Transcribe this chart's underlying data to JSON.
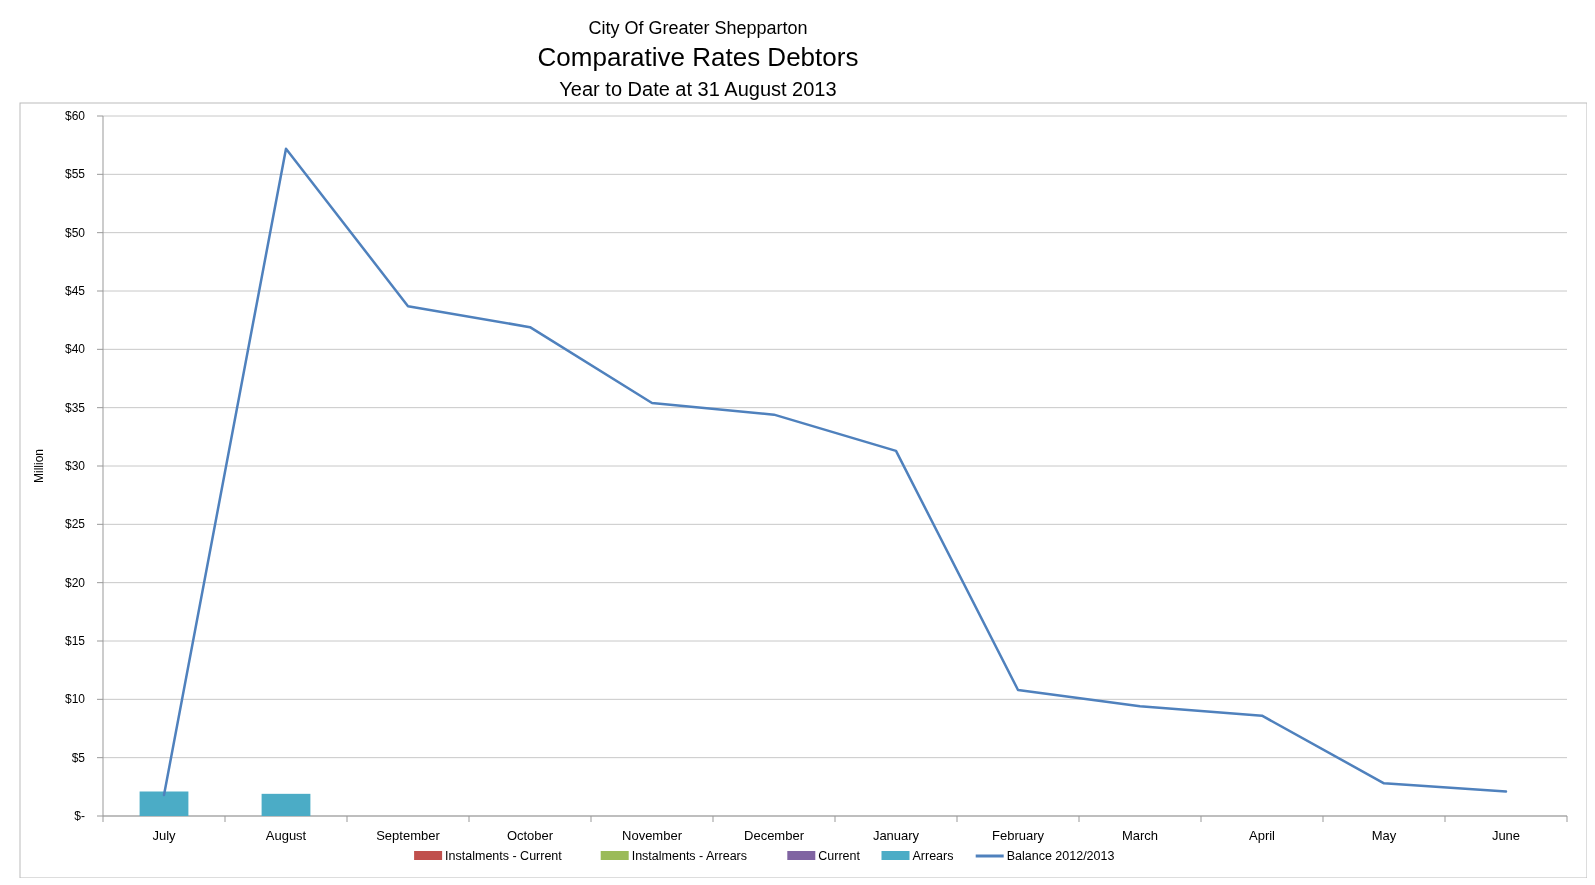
{
  "chart_data": {
    "type": "bar",
    "title": "Comparative Rates Debtors",
    "subtitle": "City Of Greater Shepparton",
    "annotations": [
      "Year to Date at 31 August 2013"
    ],
    "ylabel": "Million",
    "categories": [
      "July",
      "August",
      "September",
      "October",
      "November",
      "December",
      "January",
      "February",
      "March",
      "April",
      "May",
      "June"
    ],
    "series": [
      {
        "name": "Instalments - Current",
        "color": "#c0504d",
        "values": [
          null,
          null,
          null,
          null,
          null,
          null,
          null,
          null,
          null,
          null,
          null,
          null
        ]
      },
      {
        "name": "Instalments - Arrears",
        "color": "#9bbb59",
        "values": [
          null,
          null,
          null,
          null,
          null,
          null,
          null,
          null,
          null,
          null,
          null,
          null
        ]
      },
      {
        "name": "Current",
        "color": "#8064a2",
        "values": [
          null,
          null,
          null,
          null,
          null,
          null,
          null,
          null,
          null,
          null,
          null,
          null
        ]
      },
      {
        "name": "Arrears",
        "color": "#4bacc6",
        "values": [
          2.1,
          1.9,
          null,
          null,
          null,
          null,
          null,
          null,
          null,
          null,
          null,
          null
        ]
      },
      {
        "name": "Balance 2012/2013",
        "type": "line",
        "color": "#4f81bd",
        "values": [
          1.8,
          57.2,
          43.7,
          41.9,
          35.4,
          34.4,
          31.3,
          10.8,
          9.4,
          8.6,
          2.8,
          2.1
        ]
      }
    ],
    "ylim": [
      0,
      60
    ],
    "yticks": [
      {
        "value": 0,
        "label": "$-"
      },
      {
        "value": 5,
        "label": "$5"
      },
      {
        "value": 10,
        "label": "$10"
      },
      {
        "value": 15,
        "label": "$15"
      },
      {
        "value": 20,
        "label": "$20"
      },
      {
        "value": 25,
        "label": "$25"
      },
      {
        "value": 30,
        "label": "$30"
      },
      {
        "value": 35,
        "label": "$35"
      },
      {
        "value": 40,
        "label": "$40"
      },
      {
        "value": 45,
        "label": "$45"
      },
      {
        "value": 50,
        "label": "$50"
      },
      {
        "value": 55,
        "label": "$55"
      },
      {
        "value": 60,
        "label": "$60"
      }
    ],
    "grid": "y",
    "legend": "bottom",
    "marker": "none"
  }
}
